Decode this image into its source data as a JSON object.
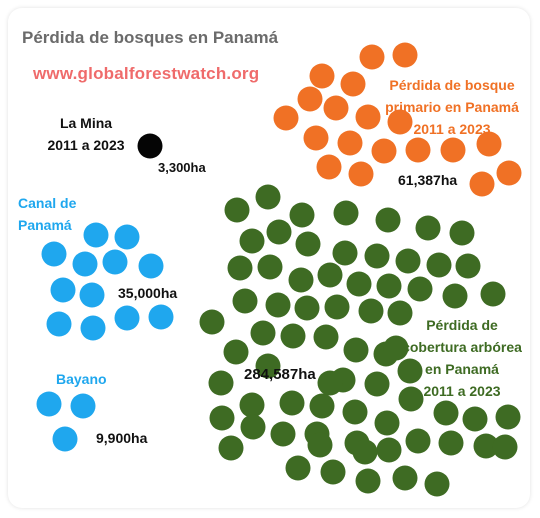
{
  "chart_data": {
    "type": "bubble-count",
    "title": "Pérdida de bosques en Panamá",
    "source": "www.globalforestwatch.org",
    "unit": "ha",
    "categories": [
      {
        "id": "primary",
        "label_lines": [
          "Pérdida de bosque",
          "primario en Panamá",
          "2011 a 2023"
        ],
        "value": 61387,
        "value_label": "61,387ha",
        "color": "#f07125",
        "dots": 27
      },
      {
        "id": "cover",
        "label_lines": [
          "Pérdida de",
          "cobertura arbórea",
          "en Panamá",
          "2011 a 2023"
        ],
        "value": 284587,
        "value_label": "284,587ha",
        "color": "#3e6b23",
        "dots": 106
      },
      {
        "id": "mina",
        "label_lines": [
          "La Mina",
          "2011 a 2023"
        ],
        "value": 3300,
        "value_label": "3,300ha",
        "color": "#050505",
        "dots": 1
      },
      {
        "id": "canal",
        "label_lines": [
          "Canal de",
          "Panamá"
        ],
        "value": 35000,
        "value_label": "35,000ha",
        "color": "#1fa7ee",
        "dots": 13
      },
      {
        "id": "bayano",
        "label_lines": [
          "Bayano"
        ],
        "value": 9900,
        "value_label": "9,900ha",
        "color": "#1fa7ee",
        "dots": 3
      }
    ]
  }
}
